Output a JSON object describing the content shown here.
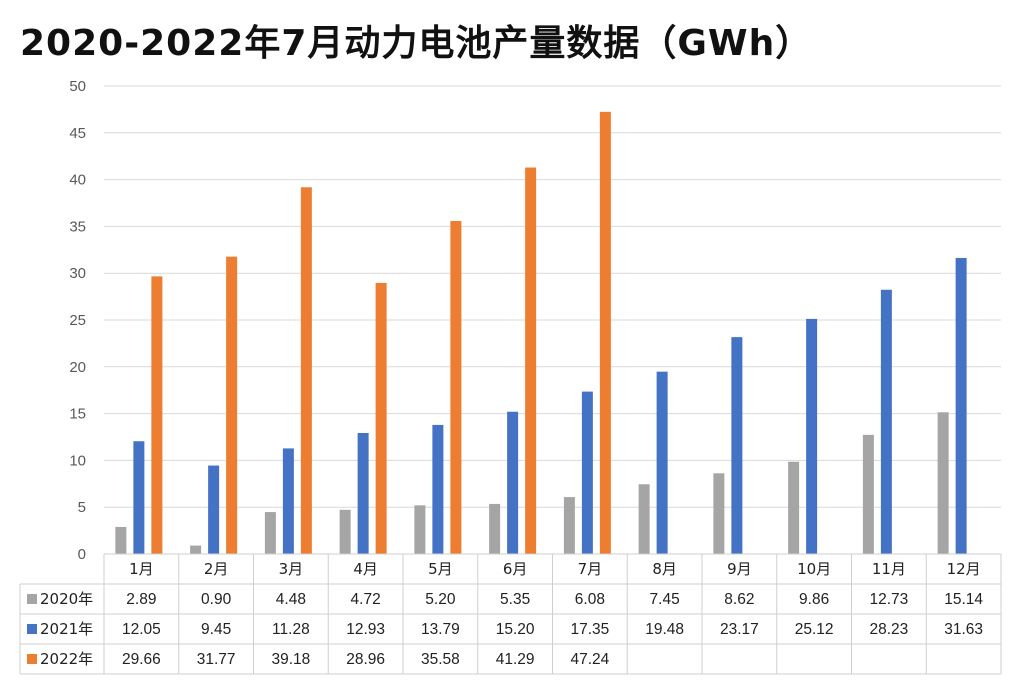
{
  "chart_data": {
    "type": "bar",
    "title": "2020-2022年7月动力电池产量数据（GWh）",
    "categories": [
      "1月",
      "2月",
      "3月",
      "4月",
      "5月",
      "6月",
      "7月",
      "8月",
      "9月",
      "10月",
      "11月",
      "12月"
    ],
    "series": [
      {
        "name": "2020年",
        "color": "#a5a5a5",
        "values": [
          2.89,
          0.9,
          4.48,
          4.72,
          5.2,
          5.35,
          6.08,
          7.45,
          8.62,
          9.86,
          12.73,
          15.14
        ],
        "labels": [
          "2.89",
          "0.90",
          "4.48",
          "4.72",
          "5.20",
          "5.35",
          "6.08",
          "7.45",
          "8.62",
          "9.86",
          "12.73",
          "15.14"
        ]
      },
      {
        "name": "2021年",
        "color": "#4472c4",
        "values": [
          12.05,
          9.45,
          11.28,
          12.93,
          13.79,
          15.2,
          17.35,
          19.48,
          23.17,
          25.12,
          28.23,
          31.63
        ],
        "labels": [
          "12.05",
          "9.45",
          "11.28",
          "12.93",
          "13.79",
          "15.20",
          "17.35",
          "19.48",
          "23.17",
          "25.12",
          "28.23",
          "31.63"
        ]
      },
      {
        "name": "2022年",
        "color": "#ed7d31",
        "values": [
          29.66,
          31.77,
          39.18,
          28.96,
          35.58,
          41.29,
          47.24,
          null,
          null,
          null,
          null,
          null
        ],
        "labels": [
          "29.66",
          "31.77",
          "39.18",
          "28.96",
          "35.58",
          "41.29",
          "47.24",
          "",
          "",
          "",
          "",
          ""
        ]
      }
    ],
    "ylim": [
      0,
      50
    ],
    "yticks": [
      0,
      5,
      10,
      15,
      20,
      25,
      30,
      35,
      40,
      45,
      50
    ],
    "grid": true,
    "legend": "data-table"
  }
}
